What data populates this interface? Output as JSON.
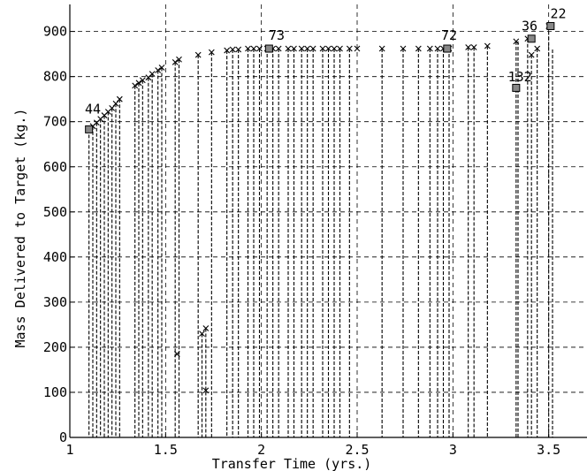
{
  "chart_data": {
    "type": "scatter",
    "title": "",
    "xlabel": "Transfer Time (yrs.)",
    "ylabel": "Mass Delivered to Target (kg.)",
    "xlim": [
      1,
      3.7
    ],
    "ylim": [
      0,
      960
    ],
    "x_ticks": [
      1,
      1.5,
      2,
      2.5,
      3,
      3.5
    ],
    "x_tick_labels": [
      "1",
      "1.5",
      "2",
      "2.5",
      "3",
      "3.5"
    ],
    "y_ticks": [
      0,
      100,
      200,
      300,
      400,
      500,
      600,
      700,
      800,
      900
    ],
    "y_tick_labels": [
      "0",
      "100",
      "200",
      "300",
      "400",
      "500",
      "600",
      "700",
      "800",
      "900"
    ],
    "grid": true,
    "grid_style": "dashed",
    "marker_color": "#000000",
    "points": [
      {
        "x": 1.1,
        "y": 683
      },
      {
        "x": 1.12,
        "y": 690
      },
      {
        "x": 1.14,
        "y": 698
      },
      {
        "x": 1.16,
        "y": 706
      },
      {
        "x": 1.18,
        "y": 714
      },
      {
        "x": 1.2,
        "y": 722
      },
      {
        "x": 1.22,
        "y": 730
      },
      {
        "x": 1.24,
        "y": 740
      },
      {
        "x": 1.26,
        "y": 750
      },
      {
        "x": 1.34,
        "y": 780
      },
      {
        "x": 1.36,
        "y": 786
      },
      {
        "x": 1.38,
        "y": 792
      },
      {
        "x": 1.41,
        "y": 798
      },
      {
        "x": 1.43,
        "y": 806
      },
      {
        "x": 1.46,
        "y": 814
      },
      {
        "x": 1.48,
        "y": 820
      },
      {
        "x": 1.55,
        "y": 832
      },
      {
        "x": 1.57,
        "y": 838
      },
      {
        "x": 1.67,
        "y": 848
      },
      {
        "x": 1.74,
        "y": 854
      },
      {
        "x": 1.82,
        "y": 858
      },
      {
        "x": 1.85,
        "y": 860
      },
      {
        "x": 1.88,
        "y": 860
      },
      {
        "x": 1.93,
        "y": 862
      },
      {
        "x": 1.96,
        "y": 862
      },
      {
        "x": 1.99,
        "y": 862
      },
      {
        "x": 2.03,
        "y": 862
      },
      {
        "x": 2.06,
        "y": 862
      },
      {
        "x": 2.09,
        "y": 862
      },
      {
        "x": 2.14,
        "y": 862
      },
      {
        "x": 2.17,
        "y": 862
      },
      {
        "x": 2.21,
        "y": 862
      },
      {
        "x": 2.24,
        "y": 862
      },
      {
        "x": 2.27,
        "y": 862
      },
      {
        "x": 2.32,
        "y": 862
      },
      {
        "x": 2.35,
        "y": 862
      },
      {
        "x": 2.38,
        "y": 862
      },
      {
        "x": 2.41,
        "y": 862
      },
      {
        "x": 2.46,
        "y": 862
      },
      {
        "x": 2.5,
        "y": 862
      },
      {
        "x": 2.63,
        "y": 862
      },
      {
        "x": 2.74,
        "y": 862
      },
      {
        "x": 2.82,
        "y": 862
      },
      {
        "x": 2.88,
        "y": 862
      },
      {
        "x": 2.92,
        "y": 862
      },
      {
        "x": 2.95,
        "y": 862
      },
      {
        "x": 2.98,
        "y": 862
      },
      {
        "x": 3.08,
        "y": 865
      },
      {
        "x": 3.11,
        "y": 865
      },
      {
        "x": 3.18,
        "y": 868
      },
      {
        "x": 3.33,
        "y": 878
      },
      {
        "x": 3.39,
        "y": 884
      },
      {
        "x": 3.41,
        "y": 848
      },
      {
        "x": 3.44,
        "y": 862
      },
      {
        "x": 3.5,
        "y": 912
      },
      {
        "x": 3.33,
        "y": 775
      },
      {
        "x": 1.56,
        "y": 185
      },
      {
        "x": 1.69,
        "y": 230
      },
      {
        "x": 1.71,
        "y": 242
      },
      {
        "x": 1.71,
        "y": 104
      }
    ],
    "square_points": [
      {
        "x": 1.1,
        "y": 683
      },
      {
        "x": 2.04,
        "y": 862
      },
      {
        "x": 2.97,
        "y": 862
      },
      {
        "x": 3.33,
        "y": 775
      },
      {
        "x": 3.41,
        "y": 884
      },
      {
        "x": 3.51,
        "y": 912
      }
    ],
    "drop_lines_x": [
      1.1,
      1.12,
      1.14,
      1.16,
      1.18,
      1.2,
      1.22,
      1.24,
      1.26,
      1.34,
      1.36,
      1.38,
      1.41,
      1.43,
      1.46,
      1.48,
      1.55,
      1.57,
      1.67,
      1.69,
      1.71,
      1.74,
      1.82,
      1.85,
      1.88,
      1.93,
      1.96,
      1.99,
      2.03,
      2.06,
      2.09,
      2.14,
      2.17,
      2.21,
      2.24,
      2.27,
      2.32,
      2.35,
      2.38,
      2.41,
      2.46,
      2.63,
      2.74,
      2.82,
      2.88,
      2.92,
      2.95,
      2.98,
      3.08,
      3.11,
      3.18,
      3.33,
      3.34,
      3.39,
      3.41,
      3.44,
      3.5,
      3.52
    ],
    "annotations": [
      {
        "text": "44",
        "x": 1.12,
        "y": 718
      },
      {
        "text": "73",
        "x": 2.08,
        "y": 882
      },
      {
        "text": "72",
        "x": 2.98,
        "y": 882
      },
      {
        "text": "132",
        "x": 3.35,
        "y": 790
      },
      {
        "text": "36",
        "x": 3.4,
        "y": 902
      },
      {
        "text": "22",
        "x": 3.55,
        "y": 930
      }
    ]
  }
}
